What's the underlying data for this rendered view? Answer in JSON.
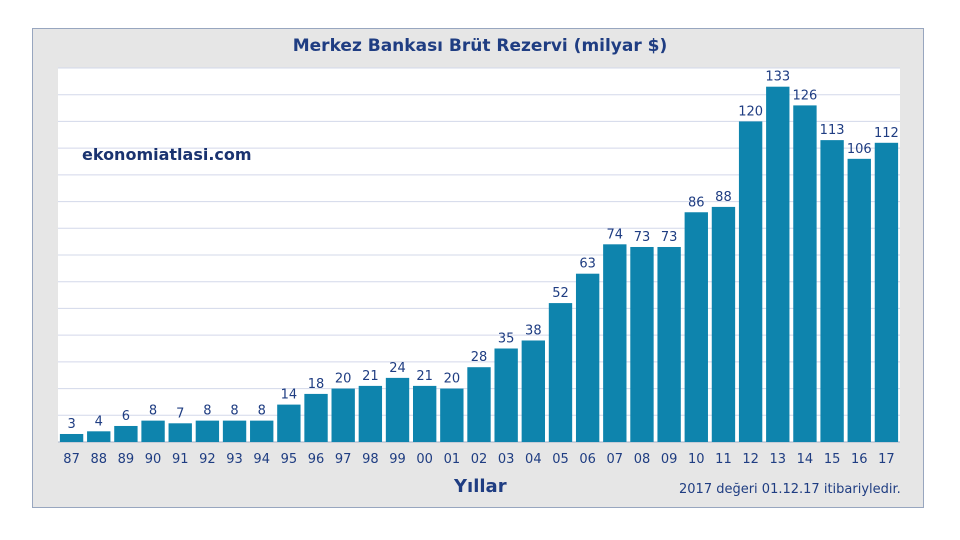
{
  "chart_data": {
    "type": "bar",
    "title": "Merkez Bankası Brüt Rezervi (milyar $)",
    "xlabel": "Yıllar",
    "ylabel": "",
    "categories": [
      "87",
      "88",
      "89",
      "90",
      "91",
      "92",
      "93",
      "94",
      "95",
      "96",
      "97",
      "98",
      "99",
      "00",
      "01",
      "02",
      "03",
      "04",
      "05",
      "06",
      "07",
      "08",
      "09",
      "10",
      "11",
      "12",
      "13",
      "14",
      "15",
      "16",
      "17"
    ],
    "values": [
      3,
      4,
      6,
      8,
      7,
      8,
      8,
      8,
      14,
      18,
      20,
      21,
      24,
      21,
      20,
      28,
      35,
      38,
      52,
      63,
      74,
      73,
      73,
      86,
      88,
      120,
      133,
      126,
      113,
      106,
      112
    ],
    "ylim": [
      0,
      140
    ],
    "grid": true,
    "bar_color": "#0e84ad",
    "label_color": "#1f3d82",
    "grid_color": "#d3d8ea"
  },
  "watermark": "ekonomiatlasi.com",
  "footnote": "2017 değeri 01.12.17 itibariyledir."
}
